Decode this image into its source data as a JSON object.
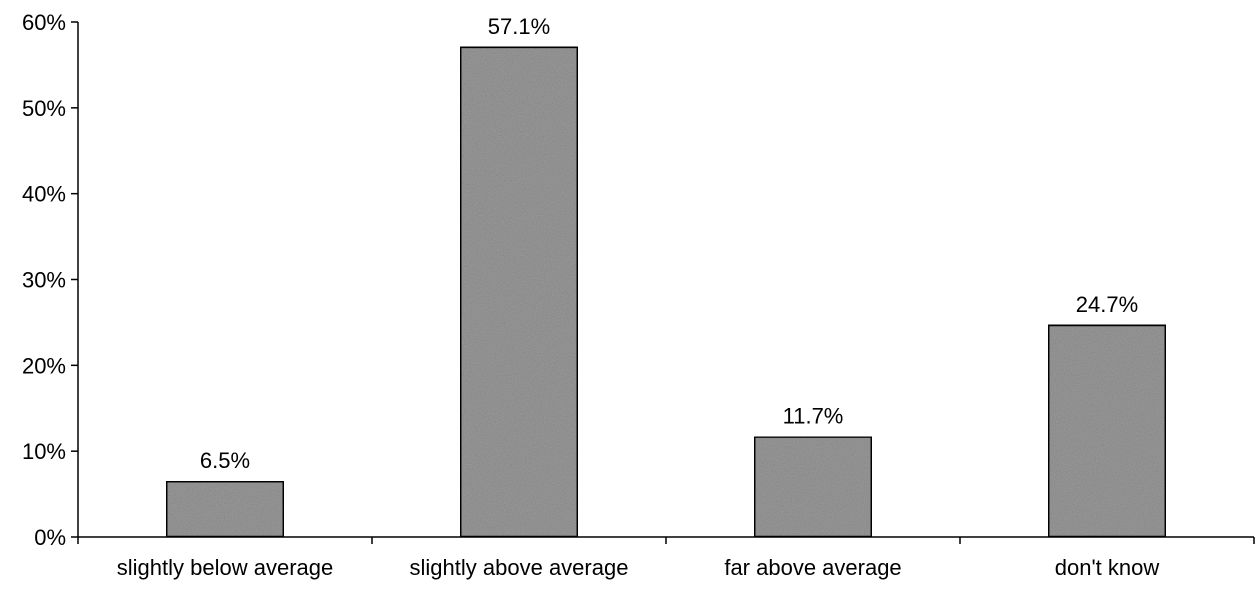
{
  "chart_data": {
    "type": "bar",
    "title": "",
    "xlabel": "",
    "ylabel": "",
    "categories": [
      "slightly below average",
      "slightly above average",
      "far above average",
      "don't know"
    ],
    "values": [
      6.5,
      57.1,
      11.7,
      24.7
    ],
    "data_labels": [
      "6.5%",
      "57.1%",
      "11.7%",
      "24.7%"
    ],
    "ylim": [
      0,
      60
    ],
    "y_ticks": [
      0,
      10,
      20,
      30,
      40,
      50,
      60
    ],
    "y_tick_labels": [
      "0%",
      "10%",
      "20%",
      "30%",
      "40%",
      "50%",
      "60%"
    ],
    "grid": false,
    "legend": "none",
    "bar_color": "#9a9a9a",
    "bar_edge_color": "#000000"
  }
}
